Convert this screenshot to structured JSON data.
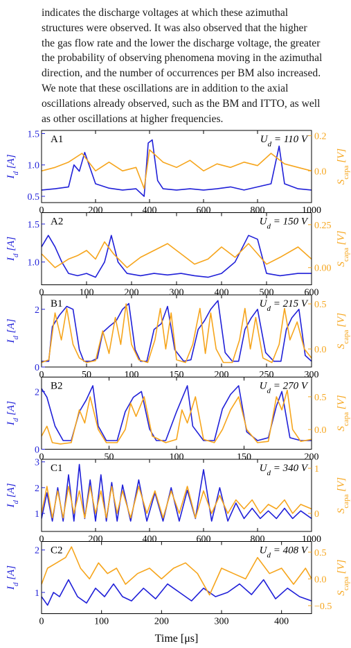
{
  "text_lines": [
    "indicates the discharge voltages at which these azimuthal",
    "structures were observed. It was also observed that the higher",
    "the gas flow rate and the lower the discharge voltage, the greater",
    "the probability of observing phenomena moving in the azimuthal",
    "direction, and the number of occurrences per BM also increased.",
    "We note that these oscillations are in addition to the axial",
    "oscillations already observed, such as the BM and ITTO, as well",
    "as other oscillations at higher frequencies."
  ],
  "colors": {
    "current": "#1f1fd8",
    "capa": "#f6a51c",
    "axis": "#000000"
  },
  "chart_data": [
    {
      "type": "line",
      "panel": "A1",
      "voltage_label": "U_d = 110 V",
      "x_range": [
        0,
        1000
      ],
      "x_ticks": [
        "0",
        "200",
        "400",
        "600",
        "800",
        "1000"
      ],
      "left_ylabel": "I_d [A]",
      "left_range": [
        0.4,
        1.55
      ],
      "left_ticks": [
        "0.5",
        "1.0",
        "1.5"
      ],
      "right_ylabel": "S_capa [V]",
      "right_range": [
        -0.18,
        0.23
      ],
      "right_ticks": [
        "0.0",
        "0.2"
      ],
      "series": [
        {
          "axis": "left",
          "x": [
            0,
            50,
            100,
            120,
            140,
            160,
            200,
            250,
            300,
            350,
            380,
            395,
            410,
            430,
            450,
            500,
            550,
            600,
            650,
            700,
            750,
            800,
            850,
            880,
            900,
            950,
            1000
          ],
          "y": [
            0.6,
            0.62,
            0.65,
            1.0,
            0.9,
            1.2,
            0.7,
            0.63,
            0.6,
            0.62,
            0.5,
            1.35,
            1.4,
            0.75,
            0.62,
            0.6,
            0.62,
            0.6,
            0.62,
            0.65,
            0.6,
            0.65,
            0.7,
            1.3,
            0.7,
            0.62,
            0.6
          ]
        },
        {
          "axis": "right",
          "x": [
            0,
            50,
            100,
            150,
            200,
            250,
            300,
            350,
            380,
            400,
            450,
            500,
            550,
            600,
            650,
            700,
            750,
            800,
            850,
            900,
            950,
            1000
          ],
          "y": [
            0.0,
            0.02,
            0.05,
            0.1,
            0.0,
            0.05,
            0.0,
            0.02,
            -0.1,
            0.12,
            0.05,
            0.02,
            0.06,
            0.0,
            0.04,
            0.02,
            0.05,
            0.03,
            0.1,
            0.04,
            0.02,
            0.0
          ]
        }
      ]
    },
    {
      "type": "line",
      "panel": "A2",
      "voltage_label": "U_d = 150 V",
      "x_range": [
        0,
        600
      ],
      "x_ticks": [
        "0",
        "100",
        "200",
        "300",
        "400",
        "500",
        "600"
      ],
      "left_ylabel": "I_d [A]",
      "left_range": [
        0.7,
        1.65
      ],
      "left_ticks": [
        "1.0",
        "1.5"
      ],
      "right_ylabel": "S_capa [V]",
      "right_range": [
        -0.1,
        0.32
      ],
      "right_ticks": [
        "0.00",
        "0.25"
      ],
      "series": [
        {
          "axis": "left",
          "x": [
            0,
            15,
            30,
            45,
            60,
            80,
            100,
            120,
            140,
            155,
            170,
            190,
            220,
            250,
            280,
            310,
            340,
            370,
            400,
            430,
            460,
            480,
            500,
            530,
            570,
            600
          ],
          "y": [
            1.2,
            1.35,
            1.2,
            1.0,
            0.85,
            0.82,
            0.85,
            0.8,
            1.0,
            1.35,
            1.0,
            0.85,
            0.82,
            0.85,
            0.83,
            0.85,
            0.82,
            0.8,
            0.85,
            1.0,
            1.35,
            1.3,
            0.85,
            0.82,
            0.85,
            0.85
          ]
        },
        {
          "axis": "right",
          "x": [
            0,
            30,
            60,
            80,
            100,
            120,
            140,
            160,
            190,
            220,
            250,
            280,
            310,
            340,
            370,
            400,
            430,
            460,
            480,
            500,
            530,
            570,
            600
          ],
          "y": [
            0.08,
            0.0,
            0.05,
            0.07,
            0.1,
            0.05,
            0.15,
            0.08,
            0.0,
            0.06,
            0.1,
            0.14,
            0.08,
            0.02,
            0.05,
            0.12,
            0.06,
            0.14,
            0.08,
            0.02,
            0.06,
            0.12,
            0.05
          ]
        }
      ]
    },
    {
      "type": "line",
      "panel": "B1",
      "voltage_label": "U_d = 215 V",
      "x_range": [
        0,
        300
      ],
      "x_ticks": [
        "0",
        "50",
        "100",
        "150",
        "200",
        "250",
        "300"
      ],
      "left_ylabel": "I_d [A]",
      "left_range": [
        0,
        2.5
      ],
      "left_ticks": [
        "0",
        "2"
      ],
      "right_ylabel": "S_capa [V]",
      "right_range": [
        -0.2,
        0.6
      ],
      "right_ticks": [
        "0.0",
        "0.5"
      ],
      "series": [
        {
          "axis": "left",
          "x": [
            0,
            8,
            12,
            20,
            28,
            35,
            42,
            47,
            55,
            62,
            68,
            75,
            83,
            90,
            97,
            104,
            110,
            117,
            125,
            133,
            140,
            148,
            158,
            166,
            174,
            181,
            188,
            196,
            204,
            212,
            219,
            226,
            233,
            240,
            249,
            258,
            266,
            272,
            278,
            286,
            293,
            300
          ],
          "y": [
            0.2,
            0.2,
            1.4,
            1.8,
            2.1,
            2.0,
            0.6,
            0.2,
            0.2,
            0.3,
            1.2,
            1.4,
            1.6,
            2.0,
            2.2,
            0.6,
            0.2,
            0.2,
            1.3,
            1.5,
            2.1,
            0.6,
            0.2,
            0.25,
            1.3,
            1.6,
            2.0,
            2.3,
            0.5,
            0.2,
            0.2,
            1.3,
            1.7,
            2.0,
            0.5,
            0.2,
            0.2,
            1.3,
            1.7,
            2.0,
            0.4,
            0.2
          ]
        },
        {
          "axis": "right",
          "x": [
            0,
            8,
            15,
            22,
            28,
            35,
            42,
            50,
            60,
            68,
            75,
            82,
            88,
            94,
            100,
            108,
            118,
            126,
            132,
            138,
            144,
            150,
            160,
            168,
            176,
            182,
            188,
            194,
            202,
            212,
            220,
            226,
            232,
            238,
            246,
            256,
            264,
            270,
            276,
            284,
            292,
            300
          ],
          "y": [
            -0.15,
            -0.12,
            0.4,
            0.1,
            0.45,
            0.05,
            -0.1,
            -0.15,
            -0.13,
            0.2,
            -0.05,
            0.35,
            0.05,
            0.5,
            0.05,
            -0.12,
            -0.15,
            0.1,
            0.45,
            0.0,
            0.4,
            -0.12,
            -0.15,
            0.05,
            0.45,
            -0.05,
            0.4,
            0.0,
            -0.15,
            -0.15,
            0.1,
            0.45,
            0.0,
            0.35,
            -0.1,
            -0.15,
            0.05,
            0.45,
            0.1,
            0.3,
            0.0,
            -0.1
          ]
        }
      ]
    },
    {
      "type": "line",
      "panel": "B2",
      "voltage_label": "U_d = 270 V",
      "x_range": [
        0,
        200
      ],
      "x_ticks": [
        "0",
        "50",
        "100",
        "150",
        "200"
      ],
      "left_ylabel": "I_d [A]",
      "left_range": [
        0,
        2.5
      ],
      "left_ticks": [
        "0",
        "2"
      ],
      "right_ylabel": "S_capa [V]",
      "right_range": [
        -0.3,
        0.8
      ],
      "right_ticks": [
        "0.0",
        "0.5"
      ],
      "series": [
        {
          "axis": "left",
          "x": [
            0,
            4,
            10,
            16,
            22,
            28,
            33,
            38,
            42,
            48,
            56,
            62,
            68,
            74,
            80,
            85,
            92,
            100,
            108,
            112,
            120,
            128,
            134,
            140,
            146,
            152,
            160,
            168,
            174,
            178,
            184,
            192,
            200
          ],
          "y": [
            2.1,
            1.8,
            0.8,
            0.3,
            0.3,
            1.3,
            1.7,
            2.2,
            0.8,
            0.3,
            0.3,
            1.3,
            1.8,
            2.0,
            0.7,
            0.3,
            0.3,
            1.3,
            2.2,
            0.8,
            0.3,
            0.3,
            1.4,
            1.9,
            2.2,
            0.6,
            0.3,
            0.4,
            1.5,
            2.0,
            0.4,
            0.3,
            0.3
          ]
        },
        {
          "axis": "right",
          "x": [
            0,
            4,
            8,
            14,
            22,
            28,
            32,
            36,
            42,
            48,
            56,
            62,
            66,
            70,
            76,
            82,
            92,
            100,
            104,
            108,
            114,
            120,
            128,
            134,
            140,
            146,
            152,
            160,
            168,
            174,
            178,
            182,
            186,
            192,
            200
          ],
          "y": [
            -0.1,
            0.05,
            -0.2,
            -0.22,
            -0.2,
            0.3,
            0.1,
            0.5,
            0.0,
            -0.2,
            -0.2,
            0.0,
            0.4,
            0.2,
            0.5,
            -0.1,
            -0.2,
            -0.15,
            0.3,
            0.1,
            0.5,
            -0.15,
            -0.2,
            0.0,
            0.3,
            0.5,
            0.0,
            -0.2,
            -0.18,
            0.5,
            0.3,
            0.6,
            0.0,
            -0.18,
            -0.15
          ]
        }
      ]
    },
    {
      "type": "line",
      "panel": "C1",
      "voltage_label": "U_d = 340 V",
      "x_range": [
        0,
        1000
      ],
      "x_ticks": [
        "0",
        "200",
        "400",
        "600",
        "800",
        "1000"
      ],
      "left_ylabel": "I_d [A]",
      "left_range": [
        0.3,
        3.1
      ],
      "left_ticks": [
        "1",
        "2",
        "3"
      ],
      "right_ylabel": "S_capa [V]",
      "right_range": [
        -0.4,
        1.2
      ],
      "right_ticks": [
        "0",
        "1"
      ],
      "series": [
        {
          "axis": "left",
          "x": [
            0,
            20,
            40,
            60,
            80,
            100,
            120,
            140,
            160,
            180,
            200,
            220,
            240,
            260,
            280,
            300,
            330,
            360,
            390,
            420,
            450,
            480,
            510,
            540,
            570,
            600,
            630,
            660,
            690,
            720,
            750,
            780,
            810,
            840,
            870,
            900,
            930,
            960,
            1000
          ],
          "y": [
            0.8,
            1.8,
            0.7,
            2.0,
            0.7,
            2.5,
            0.7,
            2.9,
            0.8,
            2.3,
            0.7,
            2.5,
            0.7,
            2.2,
            0.7,
            2.1,
            0.7,
            2.3,
            0.7,
            1.8,
            0.7,
            2.0,
            0.7,
            1.9,
            0.8,
            2.7,
            0.7,
            2.0,
            0.7,
            1.4,
            0.8,
            1.2,
            0.8,
            1.1,
            0.8,
            1.2,
            0.8,
            1.1,
            0.8
          ]
        },
        {
          "axis": "right",
          "x": [
            0,
            20,
            40,
            60,
            80,
            100,
            120,
            140,
            160,
            180,
            200,
            220,
            240,
            260,
            280,
            300,
            330,
            360,
            390,
            420,
            450,
            480,
            510,
            540,
            570,
            600,
            630,
            660,
            690,
            720,
            750,
            780,
            810,
            840,
            870,
            900,
            930,
            960,
            1000
          ],
          "y": [
            0.0,
            0.6,
            -0.1,
            0.5,
            -0.1,
            0.6,
            0.0,
            0.5,
            -0.1,
            0.6,
            0.0,
            0.5,
            -0.1,
            0.6,
            0.0,
            0.5,
            -0.1,
            0.6,
            0.0,
            0.5,
            -0.1,
            0.5,
            0.0,
            0.6,
            -0.1,
            0.5,
            0.0,
            0.4,
            0.0,
            0.3,
            0.1,
            0.3,
            0.0,
            0.2,
            0.1,
            0.3,
            0.0,
            0.2,
            0.1
          ]
        }
      ]
    },
    {
      "type": "line",
      "panel": "C2",
      "voltage_label": "U_d = 408 V",
      "x_range": [
        0,
        450
      ],
      "x_ticks": [
        "0",
        "100",
        "200",
        "300",
        "400"
      ],
      "left_ylabel": "I_d [A]",
      "left_range": [
        0.5,
        2.2
      ],
      "left_ticks": [
        "1",
        "2"
      ],
      "right_ylabel": "S_capa [V]",
      "right_range": [
        -0.65,
        0.7
      ],
      "right_ticks": [
        "−0.5",
        "0.0",
        "0.5"
      ],
      "series": [
        {
          "axis": "left",
          "x": [
            0,
            10,
            20,
            30,
            45,
            60,
            75,
            90,
            105,
            120,
            135,
            150,
            170,
            190,
            210,
            230,
            250,
            270,
            290,
            310,
            330,
            350,
            370,
            390,
            410,
            430,
            450
          ],
          "y": [
            0.9,
            0.7,
            1.0,
            0.9,
            1.3,
            0.9,
            0.75,
            1.1,
            0.9,
            1.2,
            0.9,
            0.8,
            1.1,
            0.85,
            1.2,
            1.0,
            0.8,
            1.1,
            0.9,
            1.0,
            1.2,
            0.95,
            1.3,
            0.85,
            1.1,
            0.9,
            0.8
          ]
        },
        {
          "axis": "right",
          "x": [
            0,
            10,
            25,
            40,
            50,
            65,
            80,
            95,
            110,
            125,
            140,
            160,
            180,
            200,
            220,
            240,
            260,
            280,
            300,
            320,
            340,
            360,
            380,
            400,
            420,
            440,
            450
          ],
          "y": [
            -0.1,
            0.2,
            0.3,
            0.4,
            0.6,
            0.2,
            0.0,
            0.3,
            0.1,
            0.2,
            -0.1,
            0.1,
            0.2,
            0.0,
            0.2,
            0.3,
            0.1,
            -0.3,
            0.2,
            0.1,
            0.0,
            0.4,
            0.1,
            0.2,
            -0.1,
            0.2,
            0.0
          ]
        }
      ]
    }
  ],
  "shared_xlabel": "Time [μs]"
}
